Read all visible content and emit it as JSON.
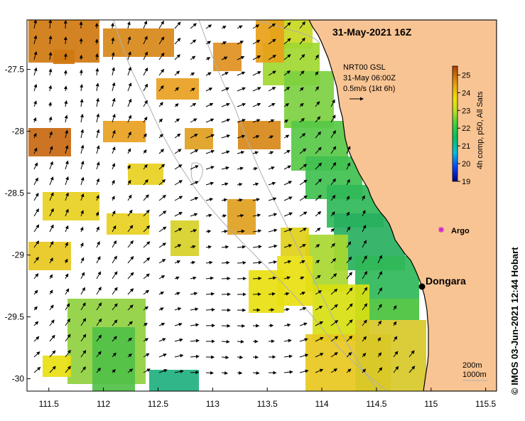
{
  "map": {
    "title": "31-May-2021 16Z",
    "current_note": [
      "NRT00 GSL",
      "31-May 06:00Z",
      "0.5m/s (1kt 6h)"
    ],
    "colorbar_label": "4h comp, p50, All Sats",
    "colorbar_ticks": [
      "25",
      "24",
      "23",
      "22",
      "21",
      "20",
      "19"
    ],
    "colorbar_range": [
      19,
      25.5
    ],
    "depth_legend": [
      "200m",
      "1000m"
    ],
    "credit": "©  IMOS 03-Jun-2021 12:44 Hobart",
    "places": [
      {
        "name": "Dongara",
        "lon": 114.93,
        "lat": -29.26
      },
      {
        "name": "Argo",
        "lon": 115.11,
        "lat": -28.83
      }
    ],
    "xlim": [
      111.3,
      115.6
    ],
    "ylim": [
      -30.1,
      -27.1
    ],
    "x_ticks": [
      "111.5",
      "112",
      "112.5",
      "113",
      "113.5",
      "114",
      "114.5",
      "115",
      "115.5"
    ],
    "y_ticks": [
      "-27.5",
      "-28",
      "-28.5",
      "-29",
      "-29.5",
      "-30"
    ],
    "colors": {
      "land": "#F9C493",
      "coastline": "#000000",
      "argo": "#D020D0",
      "isobath": "#B0B0B0"
    }
  }
}
